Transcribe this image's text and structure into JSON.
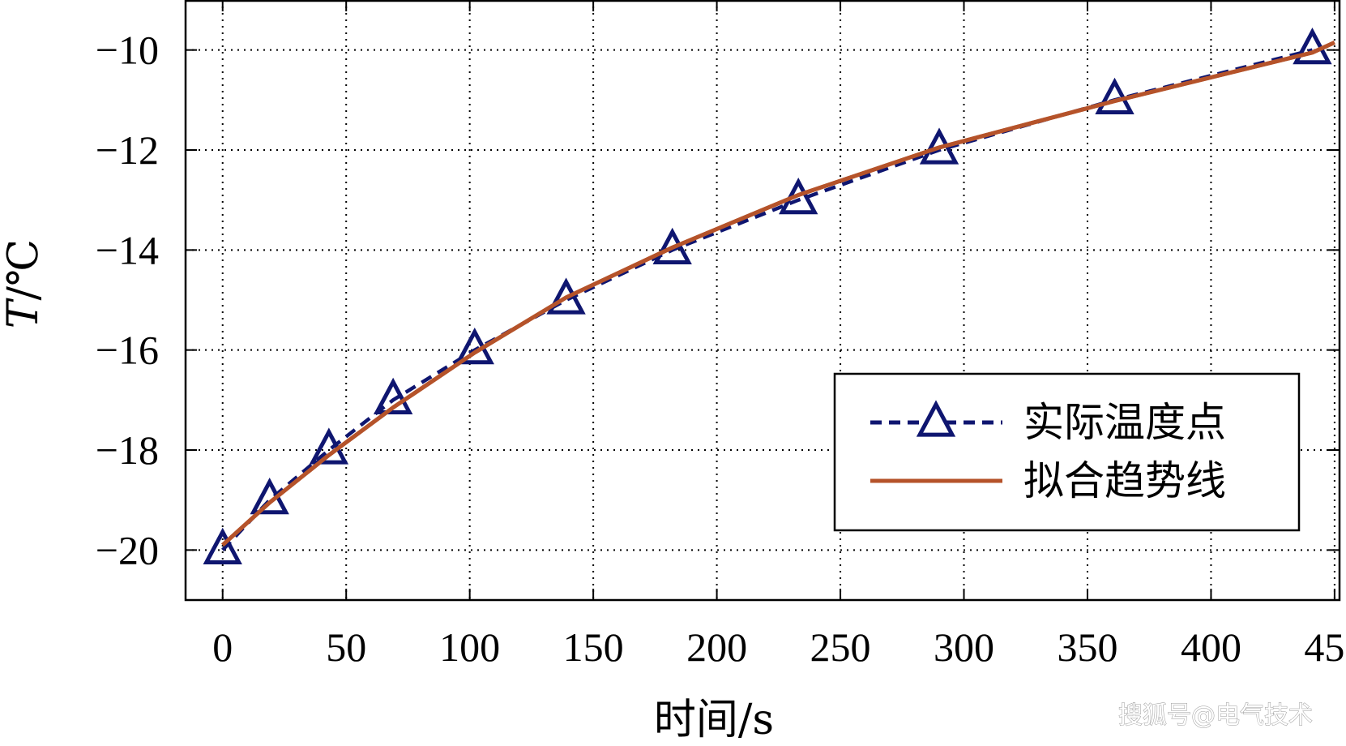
{
  "chart_data": {
    "type": "line",
    "xlabel": "时间/s",
    "ylabel": "T/℃",
    "ylabel_italic_part": "T",
    "ylabel_unit_part": "/℃",
    "xlim": [
      -15,
      452
    ],
    "ylim": [
      -21,
      -9
    ],
    "xticks": [
      0,
      50,
      100,
      150,
      200,
      250,
      300,
      350,
      400,
      450
    ],
    "yticks": [
      -20,
      -18,
      -16,
      -14,
      -12,
      -10
    ],
    "ytick_labels": [
      "−20",
      "−18",
      "−16",
      "−14",
      "−12",
      "−10"
    ],
    "grid": true,
    "legend_position": "lower-right",
    "series": [
      {
        "name": "实际温度点",
        "style": "dashed",
        "marker": "triangle",
        "color": "#0f1670",
        "x": [
          0,
          19,
          43,
          69,
          102,
          139,
          182,
          233,
          290,
          361,
          441
        ],
        "y": [
          -20,
          -19,
          -18,
          -17,
          -16,
          -15,
          -14,
          -13,
          -12,
          -11,
          -10
        ]
      },
      {
        "name": "拟合趋势线",
        "style": "solid",
        "marker": "none",
        "color": "#b5532a",
        "x": [
          0,
          19,
          43,
          69,
          102,
          139,
          182,
          233,
          290,
          361,
          441,
          450
        ],
        "y": [
          -19.9,
          -19.05,
          -18.1,
          -17.15,
          -16.05,
          -14.95,
          -13.95,
          -12.9,
          -11.95,
          -11.02,
          -10.05,
          -9.85
        ]
      }
    ]
  },
  "watermark": "搜狐号@电气技术"
}
